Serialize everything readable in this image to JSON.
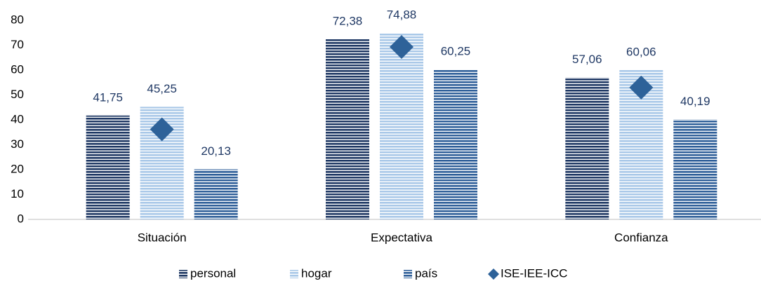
{
  "chart_data": {
    "type": "bar",
    "categories": [
      "Situación",
      "Expectativa",
      "Confianza"
    ],
    "series": [
      {
        "name": "personal",
        "color": "#1f3864",
        "values": [
          41.75,
          72.38,
          57.06
        ],
        "value_labels": [
          "41,75",
          "72,38",
          "57,06"
        ]
      },
      {
        "name": "hogar",
        "color": "#a9c8e8",
        "values": [
          45.25,
          74.88,
          60.06
        ],
        "value_labels": [
          "45,25",
          "74,88",
          "60,06"
        ]
      },
      {
        "name": "país",
        "color": "#2f5f99",
        "values": [
          20.13,
          60.25,
          40.19
        ],
        "value_labels": [
          "20,13",
          "60,25",
          "40,19"
        ]
      },
      {
        "name": "ISE-IEE-ICC",
        "color": "#2e6299",
        "type": "scatter",
        "marker": "diamond",
        "values": [
          36.2,
          69.3,
          53.0
        ]
      }
    ],
    "ylim": [
      0,
      80
    ],
    "yticks": [
      0,
      10,
      20,
      30,
      40,
      50,
      60,
      70,
      80
    ],
    "grid": false
  }
}
